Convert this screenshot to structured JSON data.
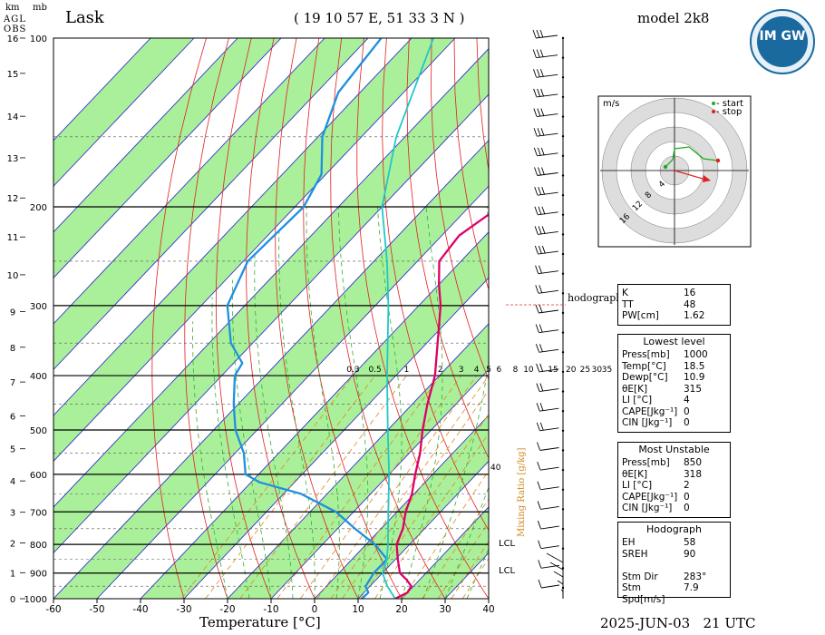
{
  "header": {
    "station": "Lask",
    "coords": "( 19 10 57 E, 51 33 3 N )",
    "model": "model 2k8",
    "datetime": "2025-JUN-03   21 UTC",
    "logo_text": "IM GW"
  },
  "axes": {
    "km_label": "km",
    "agl_label": "AGL",
    "obs_label": "OBS",
    "mb_label": "mb",
    "xlabel": "Temperature [°C]",
    "mixing_label": "Mixing Ratio [g/kg]",
    "hodo_limit": "hodograph limit",
    "lcl1": "LCL",
    "lcl2": "LCL",
    "mr_40": "40"
  },
  "hodograph": {
    "unit": "m/s",
    "start_label": "- start",
    "stop_label": "- stop",
    "ring_labels": [
      "4",
      "8",
      "12",
      "16"
    ]
  },
  "indices": {
    "top": [
      {
        "k": "K",
        "v": "16"
      },
      {
        "k": "TT",
        "v": "48"
      },
      {
        "k": "PW[cm]",
        "v": "1.62"
      }
    ],
    "lowest_title": "Lowest level",
    "lowest": [
      {
        "k": "Press[mb]",
        "v": "1000"
      },
      {
        "k": "Temp[°C]",
        "v": "18.5"
      },
      {
        "k": "Dewp[°C]",
        "v": "10.9"
      },
      {
        "k": "θE[K]",
        "v": "315"
      },
      {
        "k": "LI [°C]",
        "v": "4"
      },
      {
        "k": "CAPE[Jkg⁻¹]",
        "v": "0"
      },
      {
        "k": "CIN [Jkg⁻¹]",
        "v": "0"
      }
    ],
    "unstable_title": "Most Unstable",
    "unstable": [
      {
        "k": "Press[mb]",
        "v": "850"
      },
      {
        "k": "θE[K]",
        "v": "318"
      },
      {
        "k": "LI [°C]",
        "v": "2"
      },
      {
        "k": "CAPE[Jkg⁻¹]",
        "v": "0"
      },
      {
        "k": "CIN [Jkg⁻¹]",
        "v": "0"
      }
    ],
    "hodo_title": "Hodograph",
    "hodo": [
      {
        "k": "EH",
        "v": "58"
      },
      {
        "k": "SREH",
        "v": "90"
      },
      {
        "k": "",
        "v": ""
      },
      {
        "k": "Stm Dir",
        "v": "283°"
      },
      {
        "k": "Stm Spd[m/s]",
        "v": "7.9"
      }
    ]
  },
  "chart_data": {
    "type": "line",
    "title": "Lask",
    "xlabel": "Temperature [°C]",
    "ylabel": "mb",
    "xlim": [
      -60,
      40
    ],
    "pressure_ticks": [
      100,
      200,
      300,
      400,
      500,
      600,
      700,
      800,
      900,
      1000
    ],
    "height_ticks_km": [
      0,
      1,
      2,
      3,
      4,
      5,
      6,
      7,
      8,
      9,
      10,
      11,
      12,
      13,
      14,
      15,
      16
    ],
    "temperature_ticks": [
      -60,
      -50,
      -40,
      -30,
      -20,
      -10,
      0,
      10,
      20,
      30,
      40
    ],
    "mixing_ratio_labels": [
      "0.3",
      "0.5",
      "1",
      "2",
      "3",
      "4",
      "5",
      "6",
      "8",
      "10",
      "15",
      "20",
      "25",
      "30",
      "35"
    ],
    "series": [
      {
        "name": "temperature",
        "color": "#dd0066",
        "points": [
          [
            1000,
            18.5
          ],
          [
            975,
            20
          ],
          [
            950,
            19.5
          ],
          [
            925,
            17
          ],
          [
            900,
            14
          ],
          [
            850,
            10.5
          ],
          [
            800,
            7
          ],
          [
            750,
            5
          ],
          [
            700,
            2
          ],
          [
            650,
            -0.5
          ],
          [
            600,
            -4
          ],
          [
            550,
            -7.5
          ],
          [
            500,
            -12
          ],
          [
            450,
            -16.5
          ],
          [
            400,
            -21
          ],
          [
            350,
            -27.5
          ],
          [
            300,
            -35
          ],
          [
            275,
            -40
          ],
          [
            250,
            -45
          ],
          [
            225,
            -46
          ],
          [
            200,
            -43
          ],
          [
            175,
            -40
          ],
          [
            150,
            -37
          ],
          [
            125,
            -34
          ],
          [
            100,
            -30
          ]
        ]
      },
      {
        "name": "dewpoint",
        "color": "#1e90e0",
        "points": [
          [
            1000,
            10.9
          ],
          [
            975,
            11
          ],
          [
            950,
            9
          ],
          [
            925,
            8.5
          ],
          [
            900,
            8
          ],
          [
            850,
            8
          ],
          [
            800,
            2
          ],
          [
            750,
            -6
          ],
          [
            700,
            -14
          ],
          [
            650,
            -26
          ],
          [
            620,
            -38
          ],
          [
            600,
            -43
          ],
          [
            550,
            -48
          ],
          [
            500,
            -55
          ],
          [
            450,
            -61
          ],
          [
            400,
            -67
          ],
          [
            380,
            -68
          ],
          [
            350,
            -75
          ],
          [
            300,
            -84
          ],
          [
            250,
            -89
          ],
          [
            200,
            -88
          ],
          [
            175,
            -91
          ],
          [
            150,
            -99
          ],
          [
            125,
            -105
          ],
          [
            100,
            -107
          ]
        ]
      },
      {
        "name": "parcel",
        "color": "#20c8c8",
        "points": [
          [
            1000,
            18.5
          ],
          [
            950,
            14
          ],
          [
            900,
            10
          ],
          [
            850,
            8
          ],
          [
            800,
            5
          ],
          [
            700,
            -2
          ],
          [
            600,
            -10
          ],
          [
            500,
            -20
          ],
          [
            400,
            -32
          ],
          [
            300,
            -47
          ],
          [
            250,
            -57
          ],
          [
            200,
            -70
          ],
          [
            150,
            -82
          ],
          [
            100,
            -95
          ]
        ]
      }
    ],
    "wind_levels": 29
  },
  "colors": {
    "isotherm_band": "#aaf09a",
    "isotherm": "#3333cc",
    "dry_adiabat": "#e02020",
    "moist_adiabat": "#30b030",
    "mixing_ratio": "#e08820",
    "grid": "#000000"
  }
}
